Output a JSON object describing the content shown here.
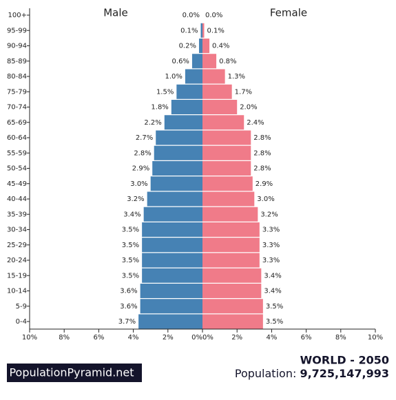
{
  "chart_data": {
    "type": "pyramid",
    "categories": [
      "100+",
      "95-99",
      "90-94",
      "85-89",
      "80-84",
      "75-79",
      "70-74",
      "65-69",
      "60-64",
      "55-59",
      "50-54",
      "45-49",
      "40-44",
      "35-39",
      "30-34",
      "25-29",
      "20-24",
      "15-19",
      "10-14",
      "5-9",
      "0-4"
    ],
    "series": [
      {
        "name": "Male",
        "color": "#4682b4",
        "values": [
          0.0,
          0.1,
          0.2,
          0.6,
          1.0,
          1.5,
          1.8,
          2.2,
          2.7,
          2.8,
          2.9,
          3.0,
          3.2,
          3.4,
          3.5,
          3.5,
          3.5,
          3.5,
          3.6,
          3.6,
          3.7
        ],
        "value_labels": [
          "0.0%",
          "0.1%",
          "0.2%",
          "0.6%",
          "1.0%",
          "1.5%",
          "1.8%",
          "2.2%",
          "2.7%",
          "2.8%",
          "2.9%",
          "3.0%",
          "3.2%",
          "3.4%",
          "3.5%",
          "3.5%",
          "3.5%",
          "3.5%",
          "3.6%",
          "3.6%",
          "3.7%"
        ]
      },
      {
        "name": "Female",
        "color": "#f07b89",
        "values": [
          0.0,
          0.1,
          0.4,
          0.8,
          1.3,
          1.7,
          2.0,
          2.4,
          2.8,
          2.8,
          2.8,
          2.9,
          3.0,
          3.2,
          3.3,
          3.3,
          3.3,
          3.4,
          3.4,
          3.5,
          3.5
        ],
        "value_labels": [
          "0.0%",
          "0.1%",
          "0.4%",
          "0.8%",
          "1.3%",
          "1.7%",
          "2.0%",
          "2.4%",
          "2.8%",
          "2.8%",
          "2.8%",
          "2.9%",
          "3.0%",
          "3.2%",
          "3.3%",
          "3.3%",
          "3.3%",
          "3.4%",
          "3.4%",
          "3.5%",
          "3.5%"
        ]
      }
    ],
    "xlim": [
      0,
      10
    ],
    "xticks": [
      {
        "value": 0,
        "label": "0%"
      },
      {
        "value": 2,
        "label": "2%"
      },
      {
        "value": 4,
        "label": "4%"
      },
      {
        "value": 6,
        "label": "6%"
      },
      {
        "value": 8,
        "label": "8%"
      },
      {
        "value": 10,
        "label": "10%"
      }
    ]
  },
  "footer": {
    "brand": "PopulationPyramid.net",
    "title": "WORLD - 2050",
    "population_label": "Population:",
    "population": "9,725,147,993"
  }
}
